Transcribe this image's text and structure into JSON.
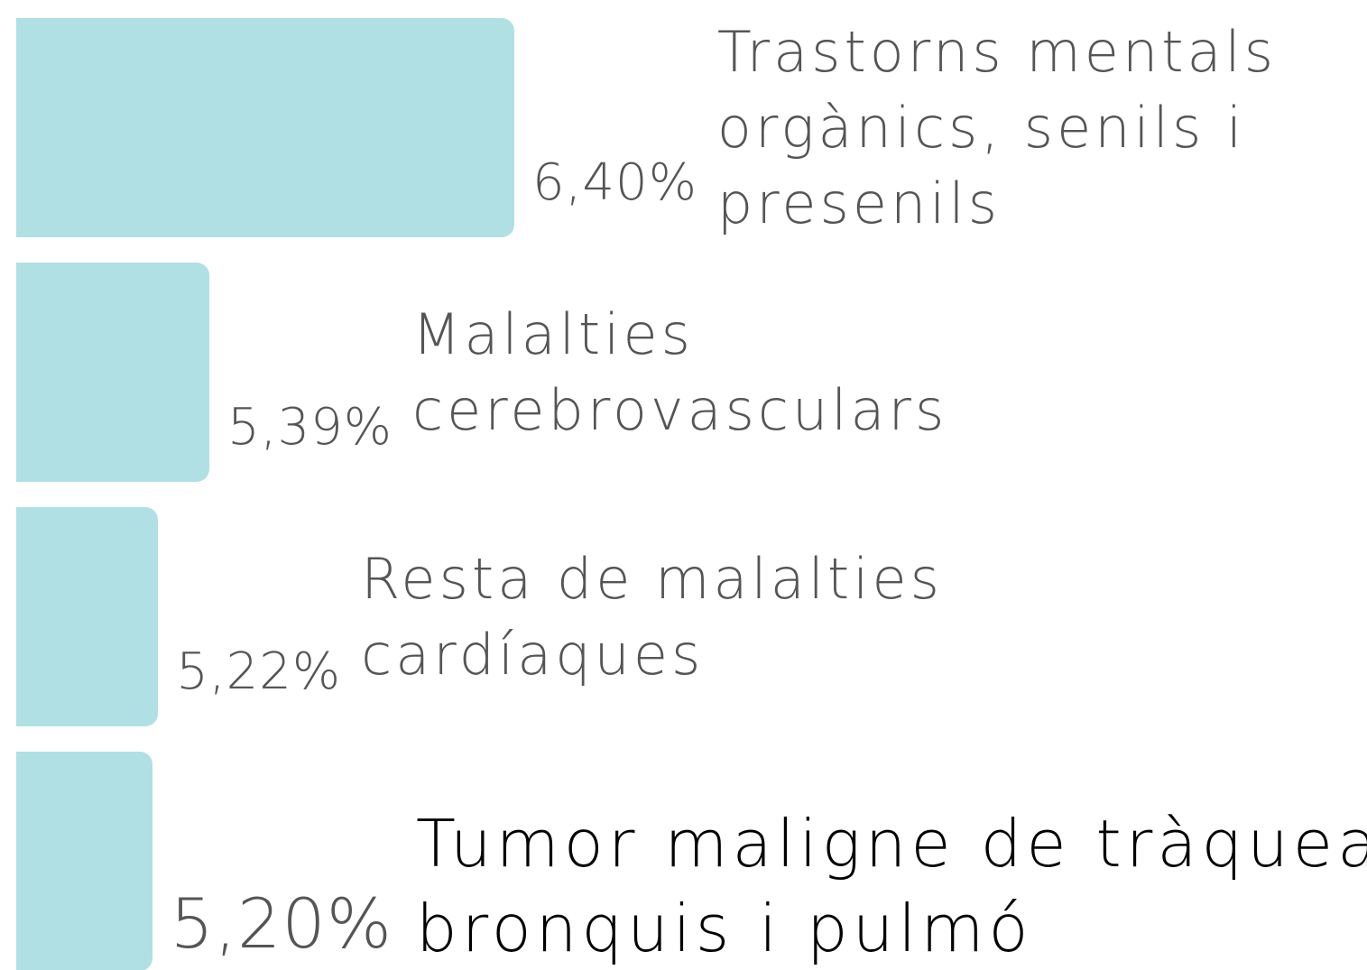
{
  "chart_data": {
    "type": "bar",
    "orientation": "horizontal",
    "categories": [
      "Trastorns mentals orgànics, senils i presenils",
      "Malalties cerebrovasculars",
      "Resta de malalties cardíaques",
      "Tumor maligne de tràquea bronquis i pulmó"
    ],
    "values": [
      6.4,
      5.39,
      5.22,
      5.2
    ],
    "value_labels": [
      "6,40%",
      "5,39%",
      "5,22%",
      "5,20%"
    ],
    "color": "#b0e0e3",
    "xlim": [
      4.75,
      6.4
    ],
    "highlight": 3
  }
}
